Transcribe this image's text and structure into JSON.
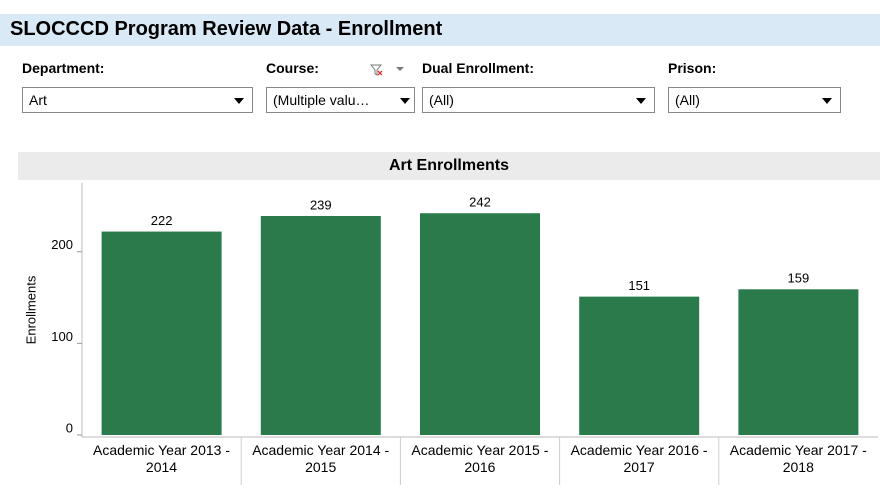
{
  "header": {
    "title": "SLOCCCD Program Review Data - Enrollment"
  },
  "filters": [
    {
      "label": "Department:",
      "value": "Art"
    },
    {
      "label": "Course:",
      "value": "(Multiple valu…"
    },
    {
      "label": "Dual Enrollment:",
      "value": "(All)"
    },
    {
      "label": "Prison:",
      "value": "(All)"
    }
  ],
  "chart_data": {
    "type": "bar",
    "title": "Art Enrollments",
    "y_label": "Enrollments",
    "categories": [
      "Academic Year 2013 - 2014",
      "Academic Year 2014 - 2015",
      "Academic Year 2015 - 2016",
      "Academic Year 2016 - 2017",
      "Academic Year 2017 - 2018"
    ],
    "values": [
      222,
      239,
      242,
      151,
      159
    ],
    "color": "#2a7a4b",
    "ylim": [
      0,
      275
    ],
    "yticks": [
      0,
      100,
      200
    ]
  }
}
